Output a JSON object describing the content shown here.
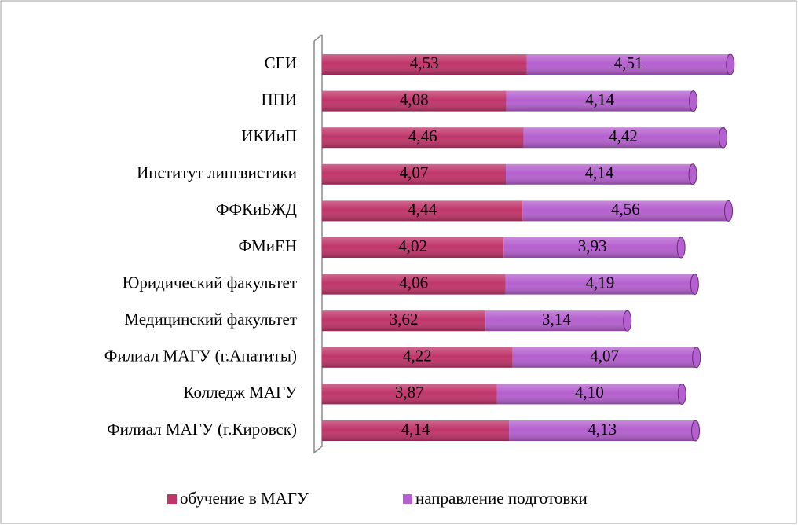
{
  "chart_data": {
    "type": "stacked_bar_horizontal",
    "categories": [
      "СГИ",
      "ППИ",
      "ИКИиП",
      "Институт лингвистики",
      "ФФКиБЖД",
      "ФМиЕН",
      "Юридический факультет",
      "Медицинский факультет",
      "Филиал МАГУ (г.Апатиты)",
      "Колледж МАГУ",
      "Филиал МАГУ (г.Кировск)"
    ],
    "series": [
      {
        "name": "обучение в МАГУ",
        "color": "#c0356a",
        "values": [
          4.53,
          4.08,
          4.46,
          4.07,
          4.44,
          4.02,
          4.06,
          3.62,
          4.22,
          3.87,
          4.14
        ],
        "value_labels": [
          "4,53",
          "4,08",
          "4,46",
          "4,07",
          "4,44",
          "4,02",
          "4,06",
          "3,62",
          "4,22",
          "3,87",
          "4,14"
        ]
      },
      {
        "name": "направление подготовки",
        "color": "#b560cf",
        "values": [
          4.51,
          4.14,
          4.42,
          4.14,
          4.56,
          3.93,
          4.19,
          3.14,
          4.07,
          4.1,
          4.13
        ],
        "value_labels": [
          "4,51",
          "4,14",
          "4,42",
          "4,14",
          "4,56",
          "3,93",
          "4,19",
          "3,14",
          "4,07",
          "4,10",
          "4,13"
        ]
      }
    ],
    "legend": "bottom"
  }
}
